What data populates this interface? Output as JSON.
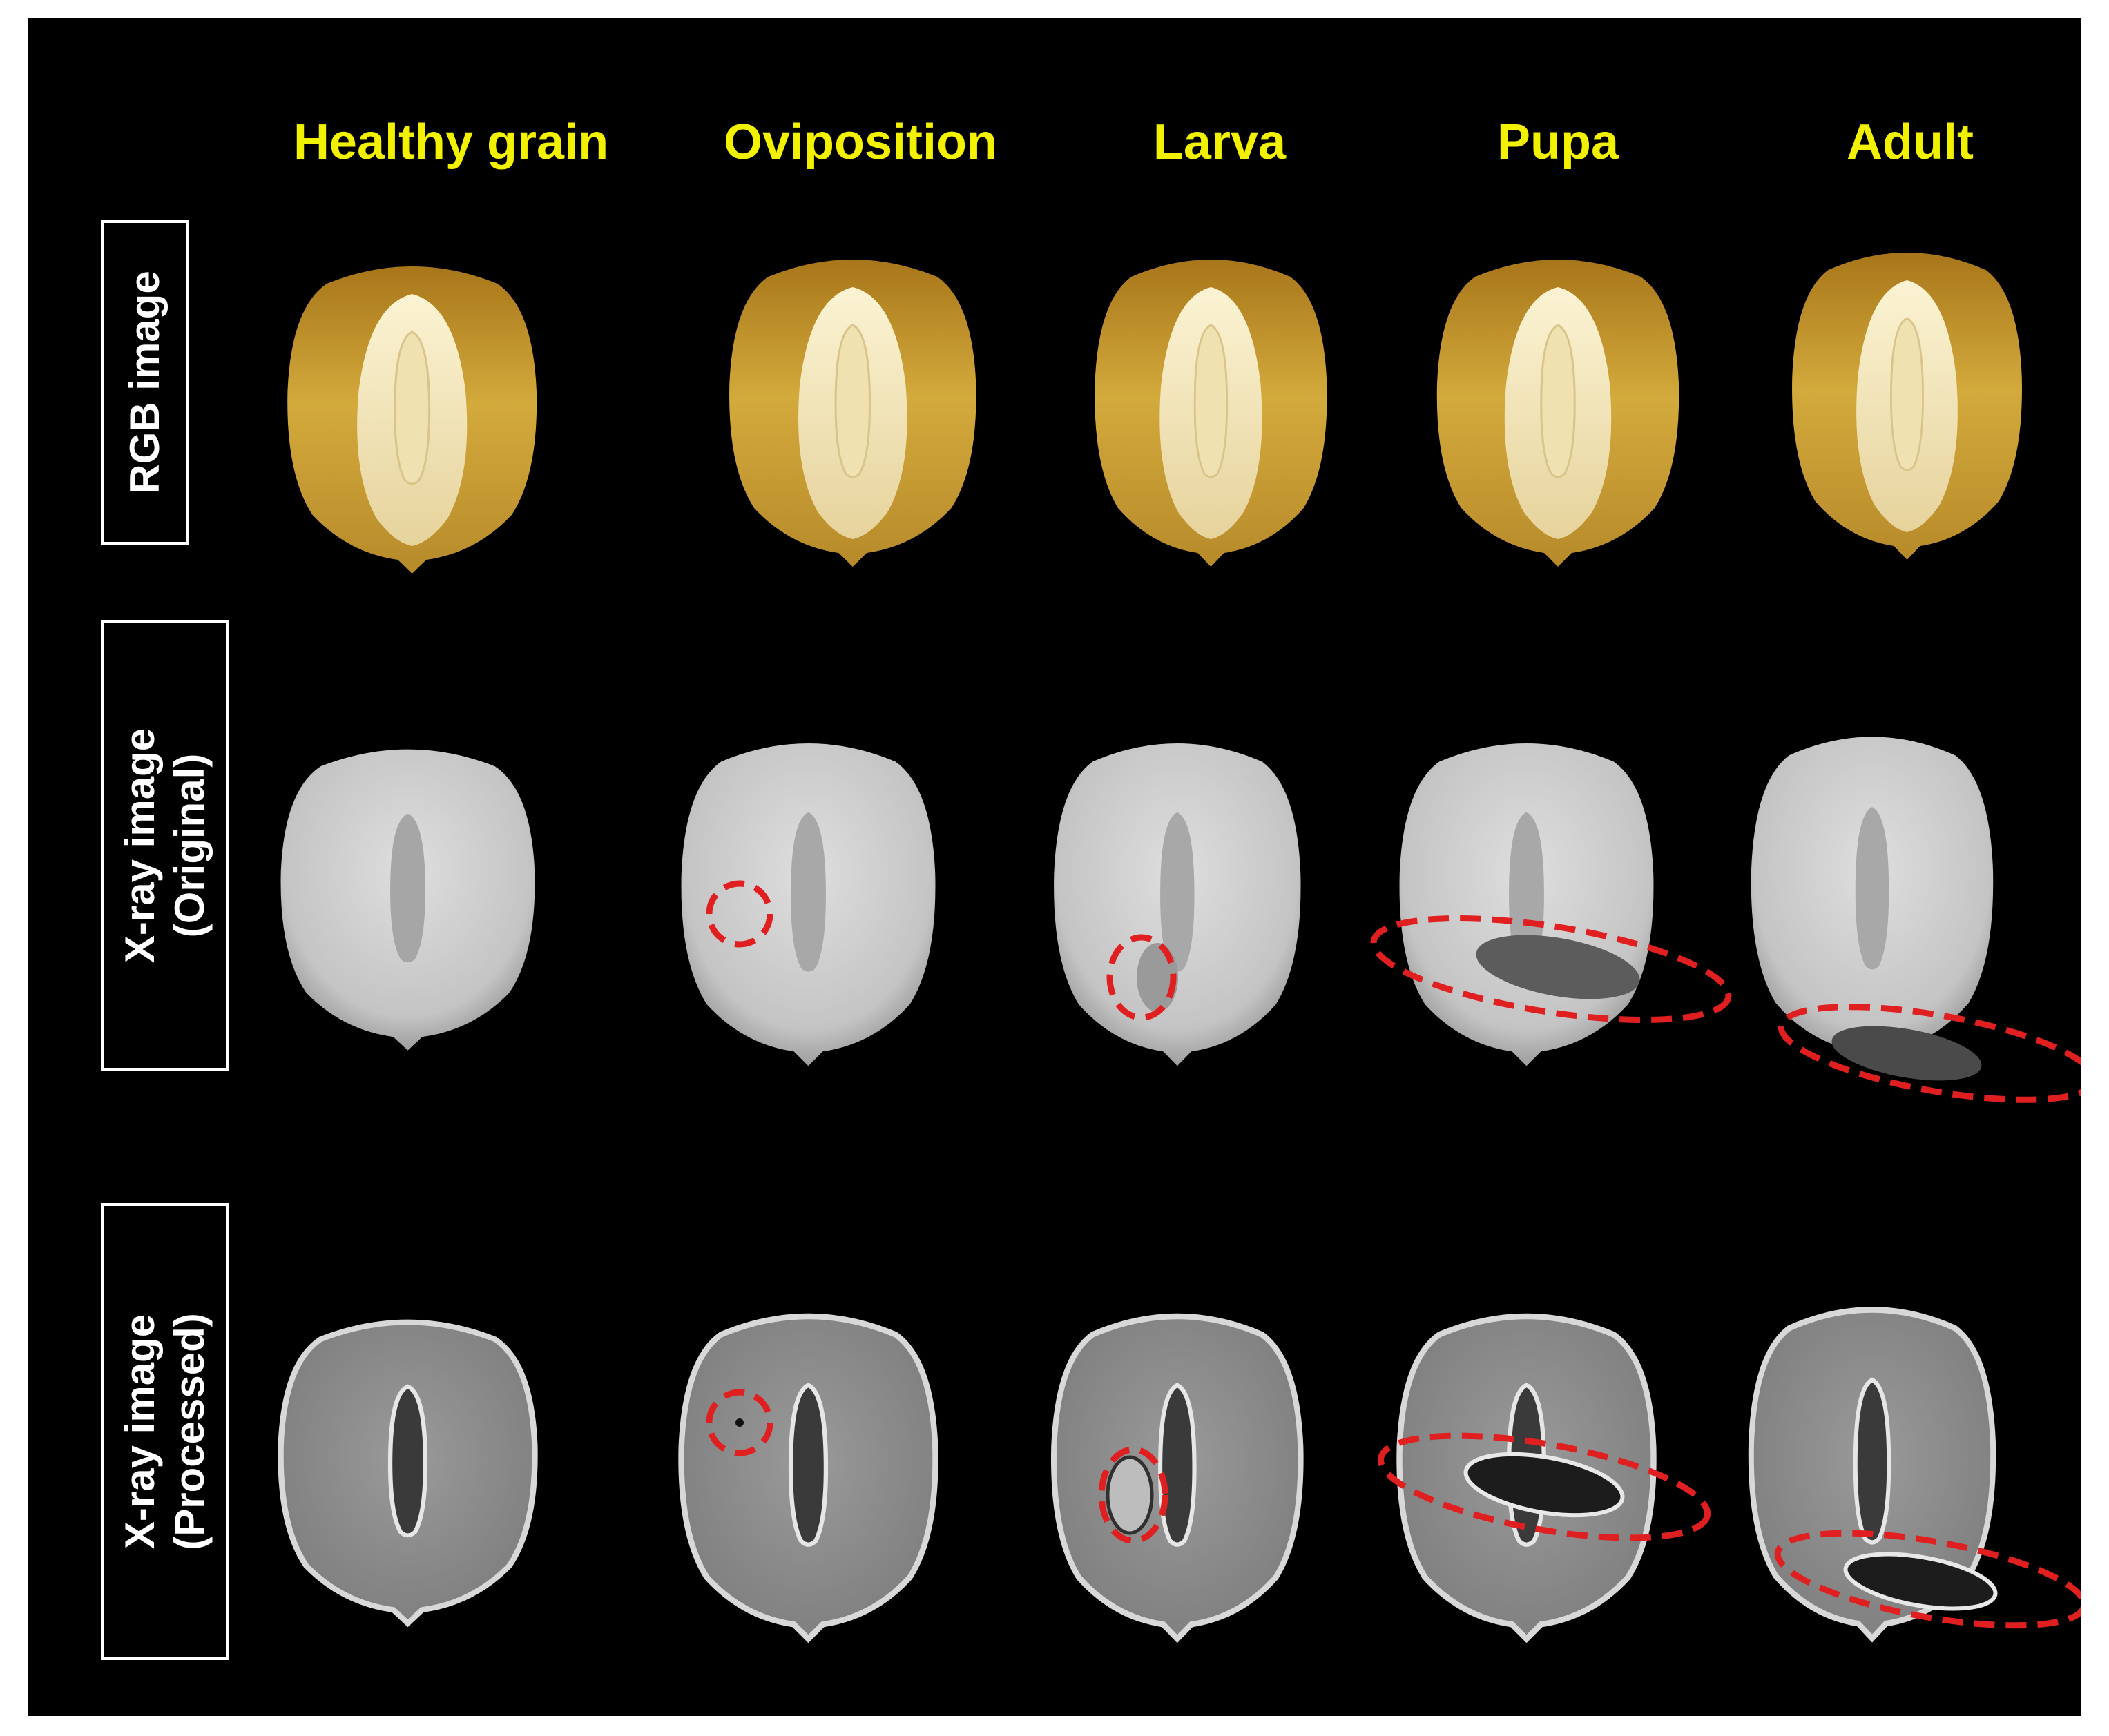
{
  "colors": {
    "background": "#000000",
    "header_text": "#f2f200",
    "label_text": "#ffffff",
    "highlight_circle": "#e02020",
    "kernel_amber": "#c9a030",
    "kernel_germ": "#f2e4b8",
    "xray_original": "#cfcfcf",
    "xray_processed": "#8a8a8a"
  },
  "columns": [
    {
      "key": "healthy",
      "label": "Healthy grain"
    },
    {
      "key": "oviposition",
      "label": "Oviposition"
    },
    {
      "key": "larva",
      "label": "Larva"
    },
    {
      "key": "pupa",
      "label": "Pupa"
    },
    {
      "key": "adult",
      "label": "Adult"
    }
  ],
  "rows": [
    {
      "key": "rgb",
      "lines": [
        "RGB image"
      ]
    },
    {
      "key": "xray_original",
      "lines": [
        "X-ray image",
        "(Original)"
      ]
    },
    {
      "key": "xray_processed",
      "lines": [
        "X-ray image",
        "(Processed)"
      ]
    }
  ],
  "highlights": [
    {
      "row": "xray_original",
      "column": "oviposition",
      "icon": "red-dashed-circle",
      "shape": "circle"
    },
    {
      "row": "xray_original",
      "column": "larva",
      "icon": "red-dashed-circle",
      "shape": "ellipse"
    },
    {
      "row": "xray_original",
      "column": "pupa",
      "icon": "red-dashed-circle",
      "shape": "ellipse"
    },
    {
      "row": "xray_original",
      "column": "adult",
      "icon": "red-dashed-circle",
      "shape": "ellipse"
    },
    {
      "row": "xray_processed",
      "column": "oviposition",
      "icon": "red-dashed-circle",
      "shape": "circle"
    },
    {
      "row": "xray_processed",
      "column": "larva",
      "icon": "red-dashed-circle",
      "shape": "ellipse"
    },
    {
      "row": "xray_processed",
      "column": "pupa",
      "icon": "red-dashed-circle",
      "shape": "ellipse"
    },
    {
      "row": "xray_processed",
      "column": "adult",
      "icon": "red-dashed-circle",
      "shape": "ellipse"
    }
  ]
}
